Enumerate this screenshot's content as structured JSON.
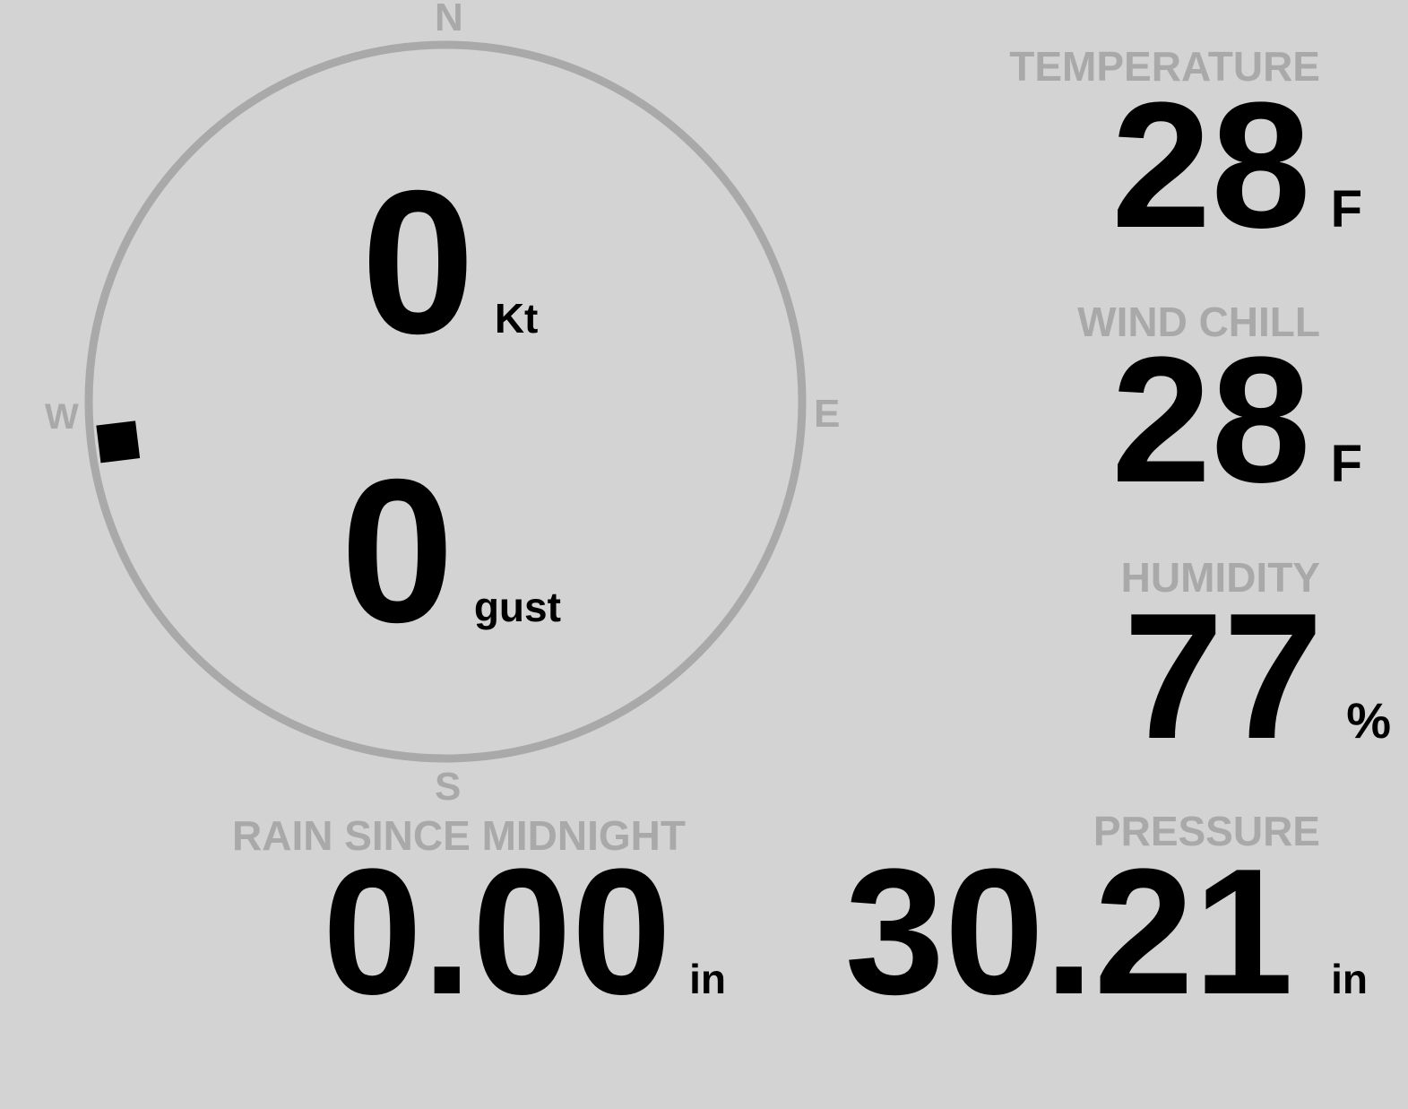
{
  "compass": {
    "north": "N",
    "east": "E",
    "south": "S",
    "west": "W",
    "wind_direction_deg": 263,
    "wind_speed": "0",
    "wind_speed_unit": "Kt",
    "gust": "0",
    "gust_unit": "gust",
    "ring_color": "#a9a9a9"
  },
  "temperature": {
    "label": "TEMPERATURE",
    "value": "28",
    "unit": "F"
  },
  "wind_chill": {
    "label": "WIND CHILL",
    "value": "28",
    "unit": "F"
  },
  "humidity": {
    "label": "HUMIDITY",
    "value": "77",
    "unit": "%"
  },
  "rain": {
    "label": "RAIN SINCE MIDNIGHT",
    "value": "0.00",
    "unit": "in"
  },
  "pressure": {
    "label": "PRESSURE",
    "value": "30.21",
    "unit": "in"
  }
}
